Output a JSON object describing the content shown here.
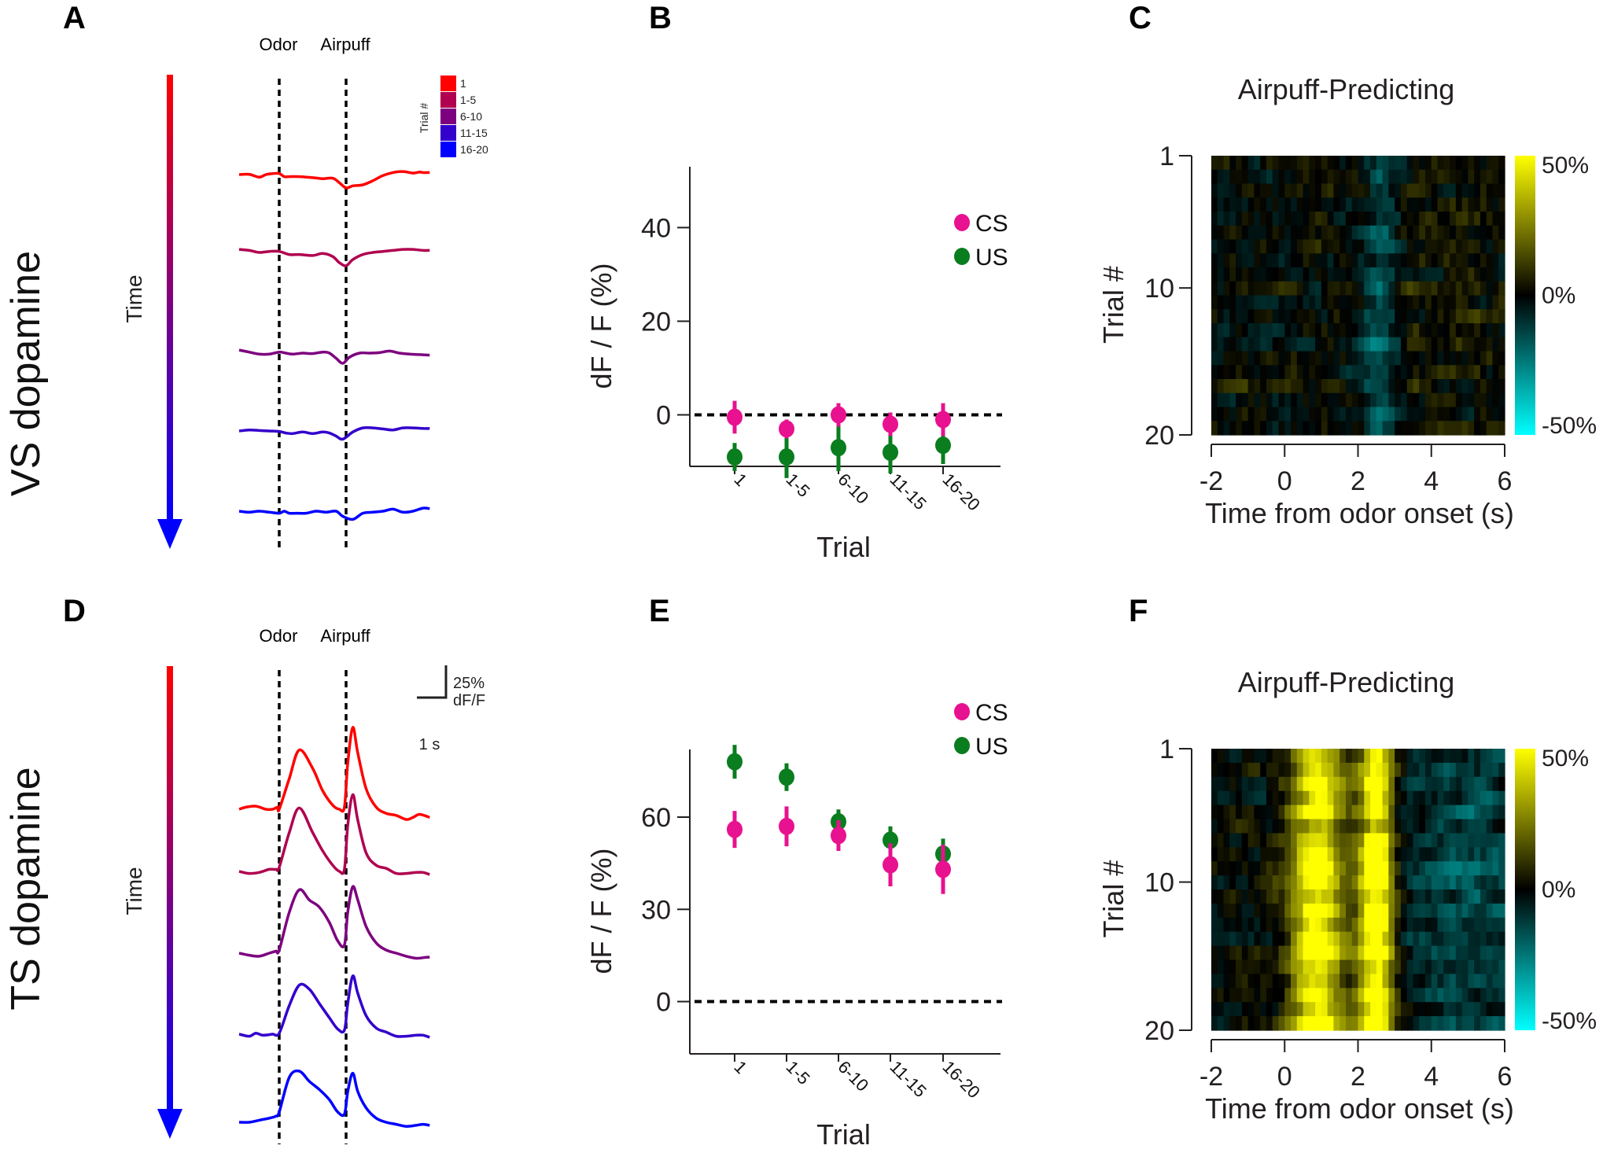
{
  "figure": {
    "panels": {
      "A": {
        "letter": "A",
        "row_label": "VS dopamine",
        "time_label": "Time",
        "event_labels": [
          "Odor",
          "Airpuff"
        ],
        "legend_title": "Trial #",
        "legend": [
          {
            "label": "1",
            "color": "#ff0000"
          },
          {
            "label": "1-5",
            "color": "#b0004f"
          },
          {
            "label": "6-10",
            "color": "#7d007f"
          },
          {
            "label": "11-15",
            "color": "#3300cc"
          },
          {
            "label": "16-20",
            "color": "#0000ff"
          }
        ]
      },
      "B": {
        "letter": "B"
      },
      "C": {
        "letter": "C"
      },
      "D": {
        "letter": "D",
        "row_label": "TS dopamine",
        "time_label": "Time",
        "event_labels": [
          "Odor",
          "Airpuff"
        ],
        "scalebar": {
          "y_label_1": "25%",
          "y_label_2": "dF/F",
          "x_label": "1 s"
        }
      },
      "E": {
        "letter": "E"
      },
      "F": {
        "letter": "F"
      }
    }
  },
  "chart_data": [
    {
      "id": "A",
      "type": "line",
      "title": "",
      "description": "Average dopamine (dF/F) traces, VS, stacked by trial group",
      "events": [
        {
          "name": "Odor",
          "time_s": 0
        },
        {
          "name": "Airpuff",
          "time_s": 2
        }
      ],
      "x_range_s": [
        -1.2,
        4.5
      ],
      "series": [
        {
          "name": "1",
          "color": "#ff0000",
          "x": [
            -1.2,
            -0.9,
            -0.6,
            -0.4,
            -0.2,
            0,
            0.15,
            0.3,
            0.6,
            1.0,
            1.3,
            1.6,
            1.8,
            2.0,
            2.2,
            2.5,
            2.8,
            3.1,
            3.4,
            3.7,
            4.0,
            4.2,
            4.3,
            4.5
          ],
          "y": [
            0,
            0.3,
            -2.5,
            0,
            1,
            1,
            -2,
            -2,
            -2,
            -3,
            -4,
            -3.5,
            -8,
            -13,
            -11,
            -10,
            -6,
            -1,
            2,
            3,
            1.5,
            2.5,
            2,
            2
          ]
        },
        {
          "name": "1-5",
          "color": "#b0004f",
          "x": [
            -1.2,
            -0.9,
            -0.6,
            -0.3,
            0,
            0.3,
            0.6,
            1.0,
            1.3,
            1.6,
            1.8,
            2.0,
            2.2,
            2.5,
            2.8,
            3.1,
            3.4,
            3.7,
            4.0,
            4.3,
            4.5
          ],
          "y": [
            3,
            2,
            0,
            1,
            1,
            -2,
            -2,
            -3,
            -1,
            -4,
            -10,
            -13,
            -7,
            -2,
            0,
            1,
            2,
            3,
            3,
            2,
            2
          ]
        },
        {
          "name": "6-10",
          "color": "#7d007f",
          "x": [
            -1.2,
            -0.9,
            -0.6,
            -0.3,
            0,
            0.2,
            0.4,
            0.7,
            1.0,
            1.3,
            1.5,
            1.7,
            1.9,
            2.1,
            2.4,
            2.7,
            3.0,
            3.3,
            3.6,
            3.9,
            4.2,
            4.5
          ],
          "y": [
            3,
            1,
            -1,
            -1,
            1,
            0,
            -1,
            0,
            -0.5,
            1,
            0,
            -5,
            -10,
            -4,
            0,
            0,
            0.5,
            2,
            0,
            -1,
            -1.5,
            -2
          ]
        },
        {
          "name": "11-15",
          "color": "#3300cc",
          "x": [
            -1.2,
            -0.9,
            -0.6,
            -0.3,
            0,
            0.2,
            0.4,
            0.7,
            1.0,
            1.3,
            1.5,
            1.7,
            1.9,
            2.2,
            2.5,
            2.8,
            3.1,
            3.4,
            3.7,
            4.0,
            4.3,
            4.5
          ],
          "y": [
            0,
            1,
            0.5,
            0,
            -0.5,
            -2,
            -2.5,
            -1,
            -2.5,
            -1,
            -2,
            -5,
            -8,
            -1,
            3,
            3,
            2,
            1,
            3,
            3,
            2.5,
            2.5
          ]
        },
        {
          "name": "16-20",
          "color": "#0000ff",
          "x": [
            -1.2,
            -0.9,
            -0.6,
            -0.3,
            0,
            0.15,
            0.3,
            0.5,
            0.8,
            1.1,
            1.4,
            1.7,
            1.9,
            2.2,
            2.5,
            2.8,
            3.1,
            3.4,
            3.7,
            4.0,
            4.3,
            4.5
          ],
          "y": [
            0,
            -1,
            0,
            -1,
            -2,
            0,
            -2,
            -2,
            -2,
            0,
            -1,
            0,
            -5,
            -8,
            -2,
            -1,
            0,
            2,
            -1,
            0,
            3,
            2.5
          ]
        }
      ],
      "scale": {
        "y": "25% dF/F",
        "x": "1 s"
      }
    },
    {
      "id": "B",
      "type": "scatter",
      "title": "",
      "xlabel": "Trial",
      "ylabel": "dF / F (%)",
      "categories": [
        "1",
        "1-5",
        "6-10",
        "11-15",
        "16-20"
      ],
      "yticks": [
        0,
        20,
        40
      ],
      "ylim": [
        -11,
        53
      ],
      "reference_line_y": 0,
      "legend_position": "top-right",
      "series": [
        {
          "name": "CS",
          "color": "#e8118f",
          "values": [
            -0.5,
            -3,
            0,
            -2,
            -1
          ],
          "errors": [
            3.5,
            2,
            2.5,
            2.5,
            3.5
          ]
        },
        {
          "name": "US",
          "color": "#0a7d1e",
          "values": [
            -9,
            -9,
            -7,
            -8,
            -6.5
          ],
          "errors": [
            3,
            4.5,
            5,
            4.5,
            4
          ]
        }
      ]
    },
    {
      "id": "C",
      "type": "heatmap",
      "title": "Airpuff-Predicting",
      "xlabel": "Time from odor onset (s)",
      "ylabel": "Trial #",
      "xticks": [
        -2,
        0,
        2,
        4,
        6
      ],
      "xlim": [
        -2,
        6
      ],
      "yticks": [
        1,
        10,
        20
      ],
      "rows": 20,
      "colorbar": {
        "ticks": [
          "50%",
          "0%",
          "-50%"
        ],
        "range": [
          -50,
          50
        ],
        "high_color": "#ffff00",
        "mid_color": "#000000",
        "low_color": "#00ffff"
      },
      "pattern": "weak negative (cyan) band around 2.3–3 s; scattered weak positive (olive) after 3 s",
      "features": [
        {
          "center_s": 2.6,
          "width_s": 0.5,
          "amplitude": -14
        },
        {
          "center_s": 4.5,
          "width_s": 1.5,
          "amplitude": 4
        }
      ],
      "noise_amplitude": 10,
      "seed": 7
    },
    {
      "id": "D",
      "type": "line",
      "title": "",
      "description": "Average dopamine (dF/F) traces, TS, stacked by trial group",
      "events": [
        {
          "name": "Odor",
          "time_s": 0
        },
        {
          "name": "Airpuff",
          "time_s": 2
        }
      ],
      "x_range_s": [
        -1.2,
        4.5
      ],
      "series": [
        {
          "name": "1",
          "color": "#ff0000",
          "x": [
            -1.2,
            -1.0,
            -0.7,
            -0.4,
            -0.2,
            -0.05,
            0,
            0.3,
            0.6,
            1.0,
            1.3,
            1.6,
            1.8,
            1.95,
            2.05,
            2.2,
            2.35,
            2.6,
            2.9,
            3.2,
            3.5,
            3.8,
            4.0,
            4.2,
            4.5
          ],
          "y": [
            0,
            2,
            3,
            0,
            0,
            2,
            0,
            30,
            58,
            40,
            18,
            4,
            0,
            2,
            45,
            80,
            55,
            20,
            2,
            -4,
            -6,
            -10,
            -8,
            -5,
            -8
          ]
        },
        {
          "name": "1-5",
          "color": "#b0004f",
          "x": [
            -1.2,
            -0.9,
            -0.6,
            -0.3,
            -0.1,
            0,
            0.3,
            0.6,
            1.0,
            1.3,
            1.6,
            1.8,
            1.95,
            2.05,
            2.2,
            2.35,
            2.6,
            2.9,
            3.2,
            3.5,
            3.8,
            4.1,
            4.3,
            4.5
          ],
          "y": [
            0,
            -2,
            -1,
            2,
            2,
            4,
            38,
            62,
            38,
            20,
            6,
            0,
            2,
            45,
            75,
            50,
            18,
            6,
            3,
            -2,
            -2,
            -1,
            -1,
            -3
          ]
        },
        {
          "name": "6-10",
          "color": "#7d007f",
          "x": [
            -1.2,
            -0.9,
            -0.6,
            -0.3,
            -0.1,
            0,
            0.3,
            0.6,
            0.9,
            1.2,
            1.5,
            1.75,
            1.95,
            2.05,
            2.2,
            2.35,
            2.6,
            2.9,
            3.2,
            3.5,
            3.8,
            4.1,
            4.4,
            4.5
          ],
          "y": [
            0,
            -2,
            -3,
            0,
            2,
            3,
            40,
            62,
            52,
            45,
            30,
            12,
            8,
            40,
            65,
            52,
            26,
            10,
            3,
            0,
            -3,
            -5,
            -4,
            -4
          ]
        },
        {
          "name": "11-15",
          "color": "#3300cc",
          "x": [
            -1.2,
            -0.9,
            -0.7,
            -0.5,
            -0.2,
            0,
            0.3,
            0.6,
            0.9,
            1.2,
            1.5,
            1.75,
            1.95,
            2.05,
            2.2,
            2.35,
            2.6,
            2.9,
            3.2,
            3.5,
            3.8,
            4.1,
            4.3,
            4.5
          ],
          "y": [
            0,
            -2,
            1,
            -1,
            0,
            1,
            28,
            48,
            44,
            30,
            16,
            5,
            4,
            30,
            57,
            40,
            18,
            6,
            2,
            -2,
            -2,
            -1,
            -1,
            -3
          ]
        },
        {
          "name": "16-20",
          "color": "#0000ff",
          "x": [
            -1.2,
            -0.9,
            -0.6,
            -0.3,
            -0.1,
            0,
            0.3,
            0.6,
            0.9,
            1.2,
            1.5,
            1.75,
            1.95,
            2.05,
            2.2,
            2.35,
            2.6,
            2.9,
            3.2,
            3.5,
            3.8,
            4.1,
            4.3,
            4.5
          ],
          "y": [
            0,
            0,
            2,
            4,
            6,
            10,
            44,
            50,
            40,
            32,
            22,
            10,
            8,
            30,
            48,
            30,
            14,
            4,
            0,
            -2,
            -4,
            -3,
            -2,
            -3
          ]
        }
      ],
      "scale": {
        "y": "25% dF/F",
        "x": "1 s"
      }
    },
    {
      "id": "E",
      "type": "scatter",
      "title": "",
      "xlabel": "Trial",
      "ylabel": "dF / F (%)",
      "categories": [
        "1",
        "1-5",
        "6-10",
        "11-15",
        "16-20"
      ],
      "yticks": [
        0,
        30,
        60
      ],
      "ylim": [
        -17,
        82
      ],
      "reference_line_y": 0,
      "legend_position": "top-right",
      "series": [
        {
          "name": "CS",
          "color": "#e8118f",
          "values": [
            56,
            57,
            54,
            44.5,
            43
          ],
          "errors": [
            6,
            6.5,
            5,
            7,
            8
          ]
        },
        {
          "name": "US",
          "color": "#0a7d1e",
          "values": [
            78,
            73,
            58.5,
            52.5,
            48
          ],
          "errors": [
            5.5,
            4.5,
            4,
            4.5,
            5
          ]
        }
      ]
    },
    {
      "id": "F",
      "type": "heatmap",
      "title": "Airpuff-Predicting",
      "xlabel": "Time from odor onset (s)",
      "ylabel": "Trial #",
      "xticks": [
        -2,
        0,
        2,
        4,
        6
      ],
      "xlim": [
        -2,
        6
      ],
      "yticks": [
        1,
        10,
        20
      ],
      "rows": 20,
      "colorbar": {
        "ticks": [
          "50%",
          "0%",
          "-50%"
        ],
        "range": [
          -50,
          50
        ],
        "high_color": "#ffff00",
        "mid_color": "#000000",
        "low_color": "#00ffff"
      },
      "pattern": "strong positive (yellow) bands at 0.3–1.6 s (odor) and 2.1–2.9 s (airpuff); weak negative after 3.5 s",
      "features": [
        {
          "center_s": 0.9,
          "width_s": 0.7,
          "amplitude": 52
        },
        {
          "center_s": 2.5,
          "width_s": 0.45,
          "amplitude": 60
        },
        {
          "center_s": 5.0,
          "width_s": 2.0,
          "amplitude": -12
        }
      ],
      "noise_amplitude": 10,
      "seed": 13
    }
  ]
}
